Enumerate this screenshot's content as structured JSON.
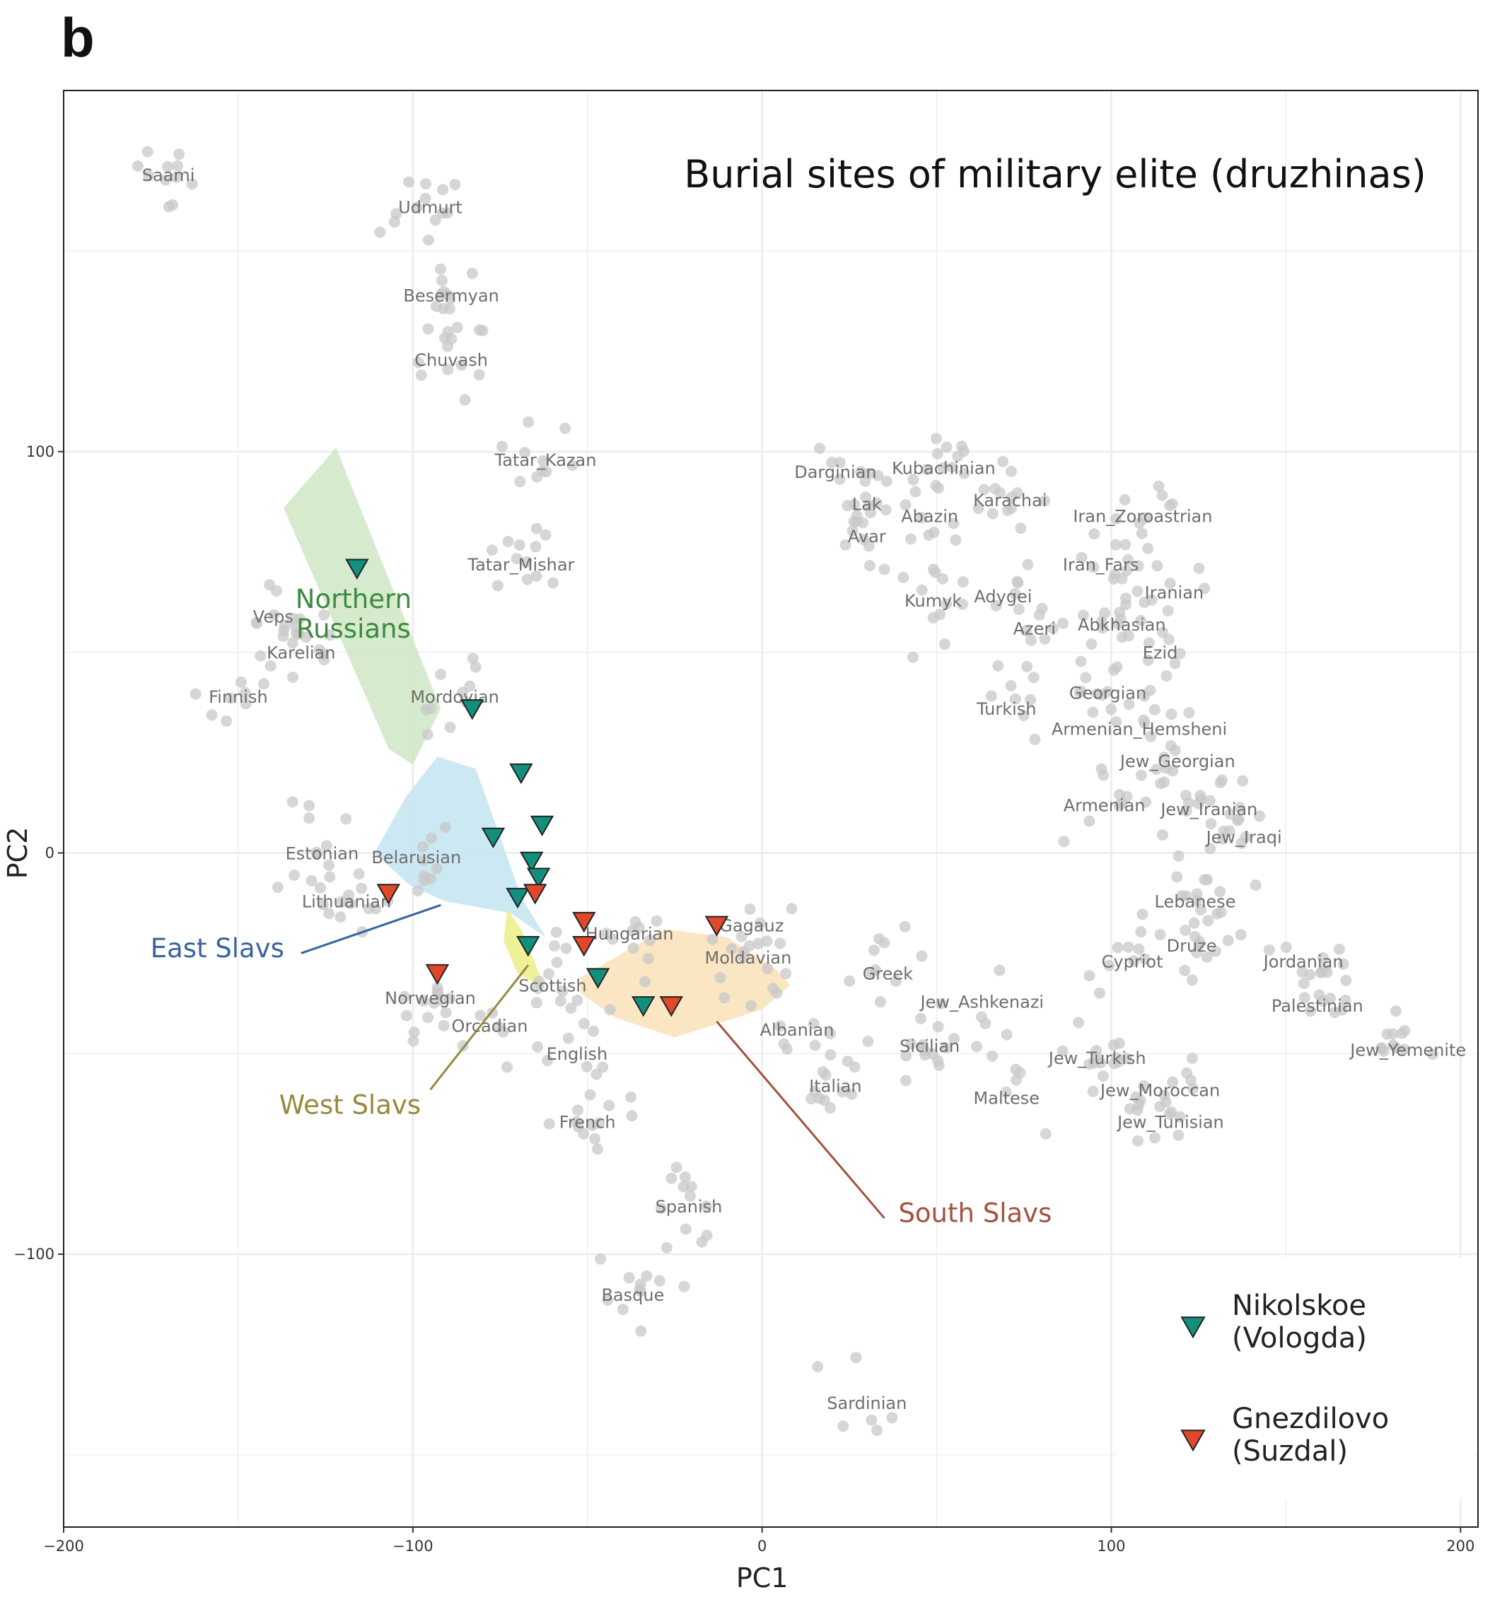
{
  "panel_letter": "b",
  "chart_data": {
    "type": "scatter",
    "title": "Burial sites of military elite (druzhinas)",
    "xlabel": "PC1",
    "ylabel": "PC2",
    "xlim": [
      -200,
      205
    ],
    "ylim": [
      -168,
      190
    ],
    "xticks": [
      -200,
      -100,
      0,
      100,
      200
    ],
    "yticks": [
      -100,
      0,
      100
    ],
    "xtick_labels": [
      "−200",
      "−100",
      "0",
      "100",
      "200"
    ],
    "ytick_labels": [
      "−100",
      "0",
      "100"
    ],
    "grid": true,
    "legend_position": "bottom-right",
    "colors": {
      "reference": "#c8c8c8",
      "nikolskoe": "#12907e",
      "gnezdilovo": "#e0472b",
      "northern_russians": "#3d8a3d",
      "east_slavs": "#3a649e",
      "west_slavs": "#978a3c",
      "south_slavs": "#a4513f"
    },
    "population_labels": [
      {
        "text": "Saami",
        "x": -170,
        "y": 169
      },
      {
        "text": "Udmurt",
        "x": -95,
        "y": 161
      },
      {
        "text": "Besermyan",
        "x": -89,
        "y": 139
      },
      {
        "text": "Chuvash",
        "x": -89,
        "y": 123
      },
      {
        "text": "Tatar_Kazan",
        "x": -62,
        "y": 98
      },
      {
        "text": "Tatar_Mishar",
        "x": -69,
        "y": 72
      },
      {
        "text": "Veps",
        "x": -140,
        "y": 59
      },
      {
        "text": "Karelian",
        "x": -132,
        "y": 50
      },
      {
        "text": "Finnish",
        "x": -150,
        "y": 39
      },
      {
        "text": "Mordovian",
        "x": -88,
        "y": 39
      },
      {
        "text": "Estonian",
        "x": -126,
        "y": 0
      },
      {
        "text": "Belarusian",
        "x": -99,
        "y": -1
      },
      {
        "text": "Lithuanian",
        "x": -119,
        "y": -12
      },
      {
        "text": "Norwegian",
        "x": -95,
        "y": -36
      },
      {
        "text": "Scottish",
        "x": -60,
        "y": -33
      },
      {
        "text": "Orcadian",
        "x": -78,
        "y": -43
      },
      {
        "text": "English",
        "x": -53,
        "y": -50
      },
      {
        "text": "French",
        "x": -50,
        "y": -67
      },
      {
        "text": "Hungarian",
        "x": -38,
        "y": -20
      },
      {
        "text": "Gagauz",
        "x": -3,
        "y": -18
      },
      {
        "text": "Moldavian",
        "x": -4,
        "y": -26
      },
      {
        "text": "Albanian",
        "x": 10,
        "y": -44
      },
      {
        "text": "Italian",
        "x": 21,
        "y": -58
      },
      {
        "text": "Greek",
        "x": 36,
        "y": -30
      },
      {
        "text": "Jew_Ashkenazi",
        "x": 63,
        "y": -37
      },
      {
        "text": "Sicilian",
        "x": 48,
        "y": -48
      },
      {
        "text": "Maltese",
        "x": 70,
        "y": -61
      },
      {
        "text": "Spanish",
        "x": -21,
        "y": -88
      },
      {
        "text": "Basque",
        "x": -37,
        "y": -110
      },
      {
        "text": "Sardinian",
        "x": 30,
        "y": -137
      },
      {
        "text": "Darginian",
        "x": 21,
        "y": 95
      },
      {
        "text": "Kubachinian",
        "x": 52,
        "y": 96
      },
      {
        "text": "Karachai",
        "x": 71,
        "y": 88
      },
      {
        "text": "Lak",
        "x": 30,
        "y": 87
      },
      {
        "text": "Abazin",
        "x": 48,
        "y": 84
      },
      {
        "text": "Avar",
        "x": 30,
        "y": 79
      },
      {
        "text": "Kumyk",
        "x": 49,
        "y": 63
      },
      {
        "text": "Adygei",
        "x": 69,
        "y": 64
      },
      {
        "text": "Azeri",
        "x": 78,
        "y": 56
      },
      {
        "text": "Turkish",
        "x": 70,
        "y": 36
      },
      {
        "text": "Iran_Zoroastrian",
        "x": 109,
        "y": 84
      },
      {
        "text": "Iran_Fars",
        "x": 97,
        "y": 72
      },
      {
        "text": "Iranian",
        "x": 118,
        "y": 65
      },
      {
        "text": "Abkhasian",
        "x": 103,
        "y": 57
      },
      {
        "text": "Ezid",
        "x": 114,
        "y": 50
      },
      {
        "text": "Georgian",
        "x": 99,
        "y": 40
      },
      {
        "text": "Armenian_Hemsheni",
        "x": 108,
        "y": 31
      },
      {
        "text": "Jew_Georgian",
        "x": 119,
        "y": 23
      },
      {
        "text": "Armenian",
        "x": 98,
        "y": 12
      },
      {
        "text": "Jew_Iranian",
        "x": 128,
        "y": 11
      },
      {
        "text": "Jew_Iraqi",
        "x": 138,
        "y": 4
      },
      {
        "text": "Lebanese",
        "x": 124,
        "y": -12
      },
      {
        "text": "Druze",
        "x": 123,
        "y": -23
      },
      {
        "text": "Cypriot",
        "x": 106,
        "y": -27
      },
      {
        "text": "Jordanian",
        "x": 155,
        "y": -27
      },
      {
        "text": "Palestinian",
        "x": 159,
        "y": -38
      },
      {
        "text": "Jew_Yemenite",
        "x": 185,
        "y": -49
      },
      {
        "text": "Jew_Turkish",
        "x": 96,
        "y": -51
      },
      {
        "text": "Jew_Moroccan",
        "x": 114,
        "y": -59
      },
      {
        "text": "Jew_Tunisian",
        "x": 117,
        "y": -67
      }
    ],
    "region_labels": [
      {
        "lines": [
          "Northern",
          "Russians"
        ],
        "color": "#3d8a3d",
        "x": -117,
        "y": 61
      },
      {
        "lines": [
          "East Slavs"
        ],
        "color": "#3a649e",
        "x": -156,
        "y": -26
      },
      {
        "lines": [
          "West Slavs"
        ],
        "color": "#978a3c",
        "x": -118,
        "y": -65
      },
      {
        "lines": [
          "South Slavs"
        ],
        "color": "#a4513f",
        "x": 61,
        "y": -92
      }
    ],
    "regions": [
      {
        "name": "Northern Russians",
        "fill": "#cfe6c6",
        "opacity": 0.85,
        "polygon": [
          [
            -137,
            86
          ],
          [
            -122,
            101
          ],
          [
            -92,
            36
          ],
          [
            -100,
            22
          ],
          [
            -107,
            26
          ]
        ]
      },
      {
        "name": "East Slavs",
        "fill": "#c6e6f2",
        "opacity": 0.9,
        "polygon": [
          [
            -93,
            24
          ],
          [
            -82,
            21
          ],
          [
            -75,
            4
          ],
          [
            -69,
            -11
          ],
          [
            -62,
            -21
          ],
          [
            -72,
            -15
          ],
          [
            -91,
            -12
          ],
          [
            -101,
            -8
          ],
          [
            -111,
            0
          ],
          [
            -102,
            14
          ]
        ]
      },
      {
        "name": "West Slavs",
        "fill": "#ecef8c",
        "opacity": 0.9,
        "polygon": [
          [
            -73,
            -14
          ],
          [
            -69,
            -19
          ],
          [
            -62,
            -34
          ],
          [
            -70,
            -30
          ],
          [
            -74,
            -22
          ]
        ]
      },
      {
        "name": "South Slavs",
        "fill": "#fbe3bd",
        "opacity": 0.9,
        "polygon": [
          [
            -52,
            -31
          ],
          [
            -28,
            -19
          ],
          [
            -10,
            -21
          ],
          [
            4,
            -29
          ],
          [
            8,
            -33
          ],
          [
            0,
            -39
          ],
          [
            -25,
            -46
          ],
          [
            -42,
            -41
          ],
          [
            -52,
            -35
          ]
        ]
      }
    ],
    "leader_lines": [
      {
        "color": "#3a649e",
        "from": [
          -132,
          -25
        ],
        "to": [
          -92,
          -13
        ]
      },
      {
        "color": "#978a3c",
        "from": [
          -95,
          -59
        ],
        "to": [
          -67,
          -28
        ]
      },
      {
        "color": "#a4513f",
        "from": [
          35,
          -91
        ],
        "to": [
          -13,
          -42
        ]
      }
    ],
    "series": [
      {
        "name": "Nikolskoe (Vologda)",
        "color": "#12907e",
        "points": [
          [
            -116,
            71
          ],
          [
            -83,
            36
          ],
          [
            -69,
            20
          ],
          [
            -77,
            4
          ],
          [
            -63,
            7
          ],
          [
            -66,
            -2
          ],
          [
            -64,
            -6
          ],
          [
            -70,
            -11
          ],
          [
            -67,
            -23
          ],
          [
            -47,
            -31
          ],
          [
            -34,
            -38
          ]
        ]
      },
      {
        "name": "Gnezdilovo (Suzdal)",
        "color": "#e0472b",
        "points": [
          [
            -107,
            -10
          ],
          [
            -93,
            -30
          ],
          [
            -65,
            -10
          ],
          [
            -51,
            -17
          ],
          [
            -51,
            -23
          ],
          [
            -26,
            -38
          ],
          [
            -13,
            -18
          ]
        ]
      }
    ],
    "legend": [
      {
        "lines": [
          "Nikolskoe",
          "(Vologda)"
        ],
        "color": "#12907e"
      },
      {
        "lines": [
          "Gnezdilovo",
          "(Suzdal)"
        ],
        "color": "#e0472b"
      }
    ]
  }
}
